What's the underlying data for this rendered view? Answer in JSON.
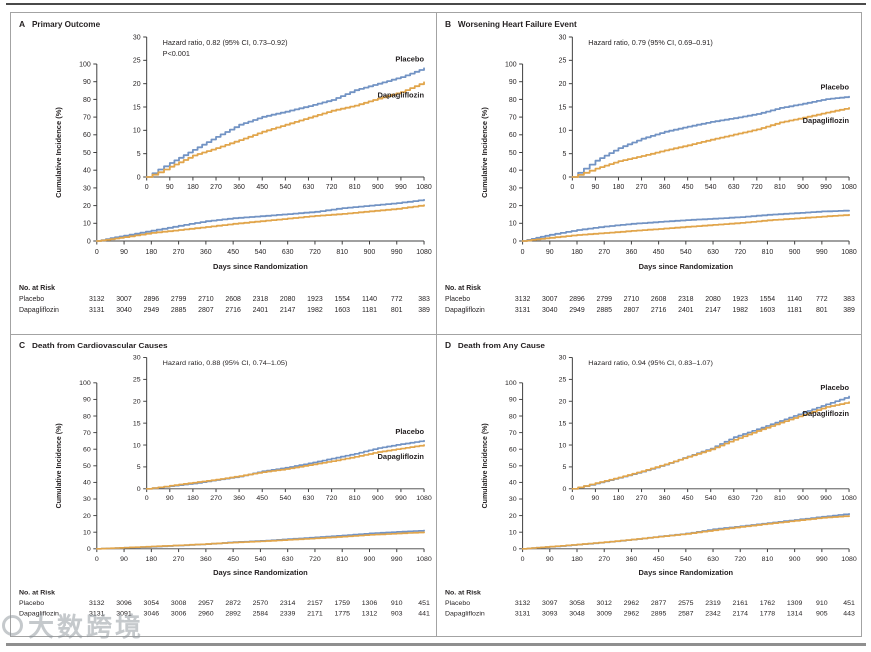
{
  "labels": {
    "risk_header": "No. at Risk",
    "xlabel": "Days since Randomization",
    "ylabel": "Cumulative Incidence (%)"
  },
  "axes": {
    "x_ticks": [
      0,
      90,
      180,
      270,
      360,
      450,
      540,
      630,
      720,
      810,
      900,
      990,
      1080
    ],
    "main_y_ticks": [
      0,
      10,
      20,
      30,
      40,
      50,
      60,
      70,
      80,
      90,
      100
    ],
    "inset_y_ticks": [
      0,
      5,
      10,
      15,
      20,
      25,
      30
    ],
    "main_ylim": [
      0,
      100
    ],
    "inset_ylim": [
      0,
      30
    ],
    "xlim": [
      0,
      1080
    ]
  },
  "colors": {
    "placebo": "#7293c4",
    "dapagliflozin": "#e1a54b",
    "axis": "#404040",
    "text": "#231f20",
    "frame": "#a3a3a3"
  },
  "watermark": {
    "text": "大数跨境"
  },
  "chart_data": [
    {
      "type": "line",
      "panel": "A",
      "title": "Primary Outcome",
      "annotations": [
        "Hazard ratio, 0.82 (95% CI, 0.73–0.92)",
        "P<0.001"
      ],
      "xlabel": "Days since Randomization",
      "ylabel": "Cumulative Incidence (%)",
      "x": [
        0,
        45,
        90,
        180,
        270,
        360,
        450,
        540,
        630,
        720,
        810,
        900,
        990,
        1080
      ],
      "series": [
        {
          "name": "Placebo",
          "key": "placebo",
          "y": [
            0,
            1.6,
            3.0,
            5.8,
            8.6,
            11.2,
            12.9,
            14.0,
            15.2,
            16.5,
            18.6,
            20.0,
            21.4,
            23.3
          ]
        },
        {
          "name": "Dapagliflozin",
          "key": "dapagliflozin",
          "y": [
            0,
            1.0,
            2.2,
            4.6,
            6.2,
            7.9,
            9.7,
            11.2,
            12.7,
            14.2,
            15.3,
            16.8,
            18.2,
            20.3
          ]
        }
      ],
      "no_at_risk": [
        {
          "label": "Placebo",
          "values": [
            3132,
            3007,
            2896,
            2799,
            2710,
            2608,
            2318,
            2080,
            1923,
            1554,
            1140,
            772,
            383
          ]
        },
        {
          "label": "Dapagliflozin",
          "values": [
            3131,
            3040,
            2949,
            2885,
            2807,
            2716,
            2401,
            2147,
            1982,
            1603,
            1181,
            801,
            389
          ]
        }
      ]
    },
    {
      "type": "line",
      "panel": "B",
      "title": "Worsening Heart Failure Event",
      "annotations": [
        "Hazard ratio, 0.79 (95% CI, 0.69–0.91)"
      ],
      "xlabel": "Days since Randomization",
      "ylabel": "Cumulative Incidence (%)",
      "x": [
        0,
        45,
        90,
        180,
        270,
        360,
        450,
        540,
        630,
        720,
        810,
        900,
        990,
        1080
      ],
      "series": [
        {
          "name": "Placebo",
          "key": "placebo",
          "y": [
            0,
            1.8,
            3.5,
            6.2,
            8.2,
            9.7,
            10.8,
            11.8,
            12.6,
            13.5,
            14.8,
            15.7,
            16.7,
            17.2
          ]
        },
        {
          "name": "Dapagliflozin",
          "key": "dapagliflozin",
          "y": [
            0,
            0.9,
            1.8,
            3.4,
            4.5,
            5.7,
            6.8,
            8.0,
            9.1,
            10.2,
            11.7,
            12.7,
            13.8,
            14.8
          ]
        }
      ],
      "no_at_risk": [
        {
          "label": "Placebo",
          "values": [
            3132,
            3007,
            2896,
            2799,
            2710,
            2608,
            2318,
            2080,
            1923,
            1554,
            1140,
            772,
            383
          ]
        },
        {
          "label": "Dapagliflozin",
          "values": [
            3131,
            3040,
            2949,
            2885,
            2807,
            2716,
            2401,
            2147,
            1982,
            1603,
            1181,
            801,
            389
          ]
        }
      ]
    },
    {
      "type": "line",
      "panel": "C",
      "title": "Death from Cardiovascular Causes",
      "annotations": [
        "Hazard ratio, 0.88 (95% CI, 0.74–1.05)"
      ],
      "xlabel": "Days since Randomization",
      "ylabel": "Cumulative Incidence (%)",
      "x": [
        0,
        45,
        90,
        180,
        270,
        360,
        450,
        540,
        630,
        720,
        810,
        900,
        990,
        1080
      ],
      "series": [
        {
          "name": "Placebo",
          "key": "placebo",
          "y": [
            0,
            0.3,
            0.6,
            1.2,
            2.0,
            2.8,
            4.0,
            4.8,
            5.8,
            6.9,
            8.0,
            9.3,
            10.2,
            11.0
          ]
        },
        {
          "name": "Dapagliflozin",
          "key": "dapagliflozin",
          "y": [
            0,
            0.35,
            0.7,
            1.4,
            2.1,
            2.9,
            3.8,
            4.5,
            5.4,
            6.3,
            7.3,
            8.4,
            9.2,
            10.0
          ]
        }
      ],
      "no_at_risk": [
        {
          "label": "Placebo",
          "values": [
            3132,
            3096,
            3054,
            3008,
            2957,
            2872,
            2570,
            2314,
            2157,
            1759,
            1306,
            910,
            451
          ]
        },
        {
          "label": "Dapagliflozin",
          "values": [
            3131,
            3091,
            3046,
            3006,
            2960,
            2892,
            2584,
            2339,
            2171,
            1775,
            1312,
            903,
            441
          ]
        }
      ]
    },
    {
      "type": "line",
      "panel": "D",
      "title": "Death from Any Cause",
      "annotations": [
        "Hazard ratio, 0.94 (95% CI, 0.83–1.07)"
      ],
      "xlabel": "Days since Randomization",
      "ylabel": "Cumulative Incidence (%)",
      "x": [
        0,
        45,
        90,
        180,
        270,
        360,
        450,
        540,
        630,
        720,
        810,
        900,
        990,
        1080
      ],
      "series": [
        {
          "name": "Placebo",
          "key": "placebo",
          "y": [
            0,
            0.6,
            1.2,
            2.5,
            3.9,
            5.5,
            7.4,
            9.2,
            11.8,
            13.6,
            15.5,
            17.4,
            19.3,
            21.1
          ]
        },
        {
          "name": "Dapagliflozin",
          "key": "dapagliflozin",
          "y": [
            0,
            0.65,
            1.3,
            2.6,
            4.0,
            5.6,
            7.3,
            9.0,
            11.2,
            13.2,
            15.1,
            16.9,
            18.7,
            19.8
          ]
        }
      ],
      "no_at_risk": [
        {
          "label": "Placebo",
          "values": [
            3132,
            3097,
            3058,
            3012,
            2962,
            2877,
            2575,
            2319,
            2161,
            1762,
            1309,
            910,
            451
          ]
        },
        {
          "label": "Dapagliflozin",
          "values": [
            3131,
            3093,
            3048,
            3009,
            2962,
            2895,
            2587,
            2342,
            2174,
            1778,
            1314,
            905,
            443
          ]
        }
      ]
    }
  ]
}
